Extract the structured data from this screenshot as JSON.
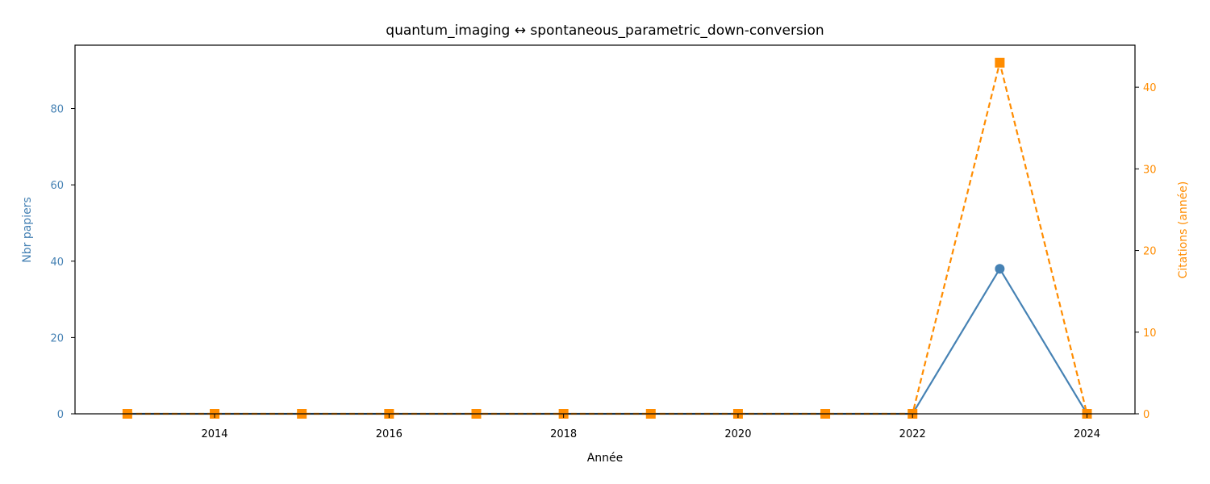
{
  "chart_data": {
    "type": "line",
    "title": "quantum_imaging  ↔  spontaneous_parametric_down-conversion",
    "xlabel": "Année",
    "ylabel_left": "Nbr papiers",
    "ylabel_right": "Citations (année)",
    "x": [
      2013,
      2014,
      2015,
      2016,
      2017,
      2018,
      2019,
      2020,
      2021,
      2022,
      2023,
      2024
    ],
    "xlim": [
      2012.4,
      2024.55
    ],
    "x_ticks": [
      2014,
      2016,
      2018,
      2020,
      2022,
      2024
    ],
    "ylim_left": [
      0,
      96.6
    ],
    "y_ticks_left": [
      0,
      20,
      40,
      60,
      80
    ],
    "ylim_right": [
      0,
      45.15
    ],
    "y_ticks_right": [
      0,
      10,
      20,
      30,
      40
    ],
    "grid": false,
    "series": [
      {
        "axis": "left",
        "color": "#4682b4",
        "style": "solid",
        "marker": "circle",
        "values": [
          0,
          0,
          0,
          0,
          0,
          0,
          0,
          0,
          0,
          0,
          38,
          0
        ]
      },
      {
        "axis": "right",
        "color": "#ff8c00",
        "style": "dashed",
        "marker": "square",
        "values": [
          0,
          0,
          0,
          0,
          0,
          0,
          0,
          0,
          0,
          0,
          43,
          0
        ]
      }
    ]
  }
}
